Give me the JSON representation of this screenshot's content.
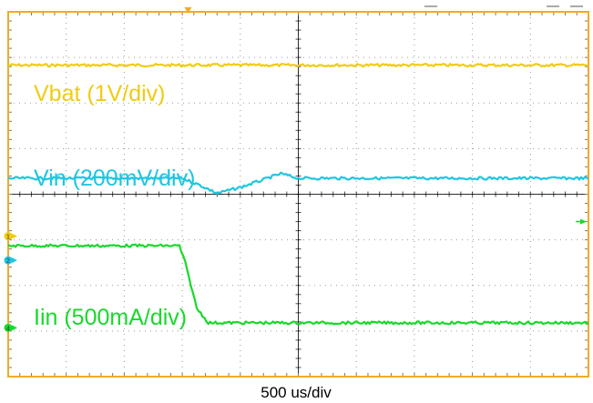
{
  "colors": {
    "background": "#ffffff",
    "frame": "#f0ac27",
    "grid": "#000000",
    "vbat": "#f0cc10",
    "vin": "#1fc6e2",
    "iin": "#18d92a"
  },
  "chart_data": {
    "type": "line",
    "xlabel": "500 us/div",
    "grid": true,
    "x_divisions": 10,
    "y_divisions": 8,
    "x_unit": "div",
    "y_unit": "div",
    "xlim": [
      0,
      10
    ],
    "ylim": [
      0,
      8
    ],
    "trigger_marker_x": 3.1,
    "series": [
      {
        "name": "Vbat (1V/div)",
        "color": "#f0cc10",
        "x": [
          0,
          10
        ],
        "y": [
          6.83,
          6.83
        ]
      },
      {
        "name": "Vin (200mV/div)",
        "color": "#1fc6e2",
        "x": [
          0,
          3.0,
          3.3,
          3.6,
          4.0,
          4.4,
          4.7,
          5.0,
          5.3,
          10
        ],
        "y": [
          4.35,
          4.35,
          4.2,
          4.02,
          4.15,
          4.32,
          4.45,
          4.35,
          4.35,
          4.35
        ]
      },
      {
        "name": "Iin (500mA/div)",
        "color": "#18d92a",
        "x": [
          0,
          2.95,
          3.05,
          3.25,
          3.45,
          4.0,
          10
        ],
        "y": [
          2.87,
          2.87,
          2.5,
          1.5,
          1.18,
          1.18,
          1.18
        ]
      }
    ],
    "channel_markers": [
      {
        "label": "1",
        "y": 3.08
      },
      {
        "label": "2",
        "y": 2.55
      },
      {
        "label": "4",
        "y": 1.07
      }
    ]
  }
}
